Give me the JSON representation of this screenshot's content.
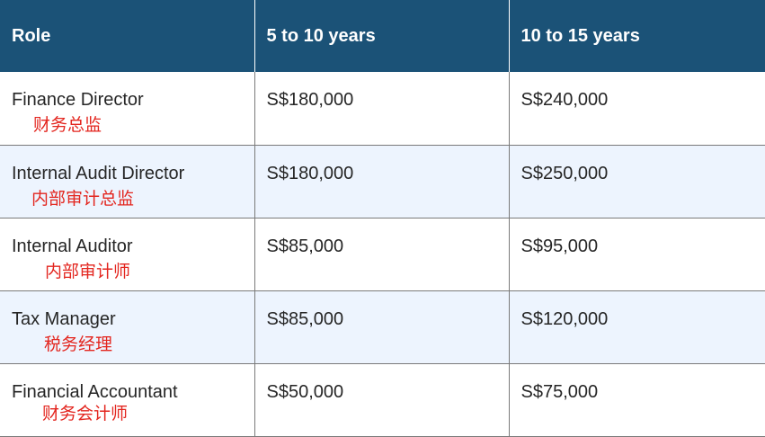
{
  "table": {
    "headers": [
      "Role",
      "5 to 10 years",
      "10 to 15 years"
    ],
    "rows": [
      {
        "role": "Finance Director",
        "role_zh": "财务总监",
        "y5_10": "S$180,000",
        "y10_15": "S$240,000"
      },
      {
        "role": "Internal Audit Director",
        "role_zh": "内部审计总监",
        "y5_10": "S$180,000",
        "y10_15": "S$250,000"
      },
      {
        "role": "Internal Auditor",
        "role_zh": "内部审计师",
        "y5_10": "S$85,000",
        "y10_15": "S$95,000"
      },
      {
        "role": "Tax Manager",
        "role_zh": "税务经理",
        "y5_10": "S$85,000",
        "y10_15": "S$120,000"
      },
      {
        "role": "Financial Accountant",
        "role_zh": "财务会计师",
        "y5_10": "S$50,000",
        "y10_15": "S$75,000"
      }
    ]
  },
  "colors": {
    "header_bg": "#1b5277",
    "header_text": "#ffffff",
    "stripe_bg": "#edf4fe",
    "chinese_text": "#e3261f",
    "body_text": "#262626"
  }
}
